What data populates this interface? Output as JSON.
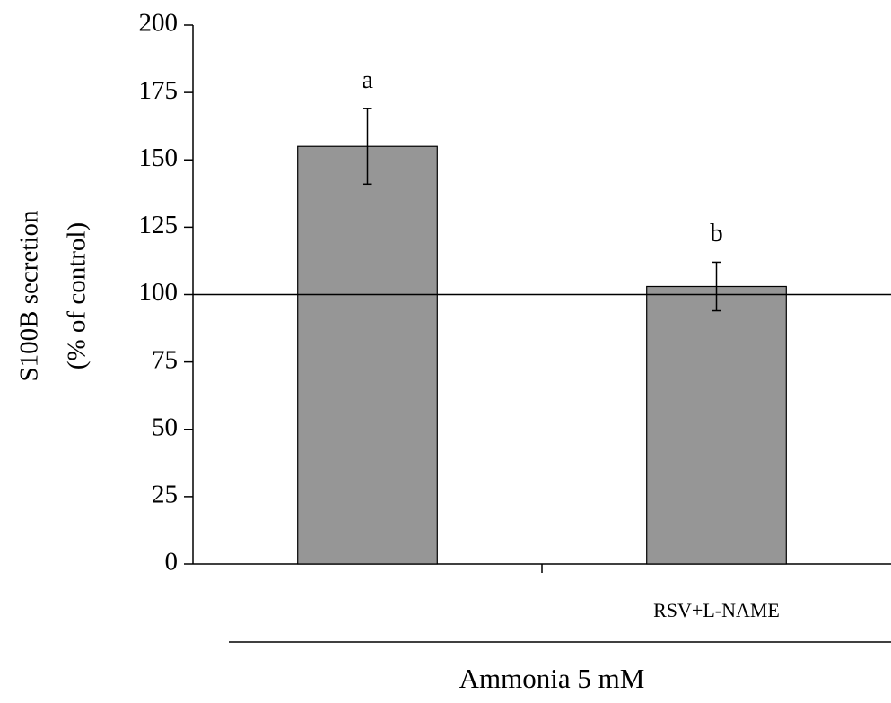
{
  "chart_data": {
    "type": "bar",
    "ylabel": [
      "S100B secretion",
      "(% of control)"
    ],
    "xlabel": "Ammonia 5 mM",
    "categories": [
      null,
      "RSV+L-NAME"
    ],
    "values": [
      155,
      103
    ],
    "errors": [
      14,
      9
    ],
    "annotations": [
      "a",
      "b"
    ],
    "reference_line": 100,
    "color": "#969696",
    "ylim": [
      0,
      200
    ],
    "yticks": [
      0,
      25,
      50,
      75,
      100,
      125,
      150,
      175,
      200
    ]
  }
}
